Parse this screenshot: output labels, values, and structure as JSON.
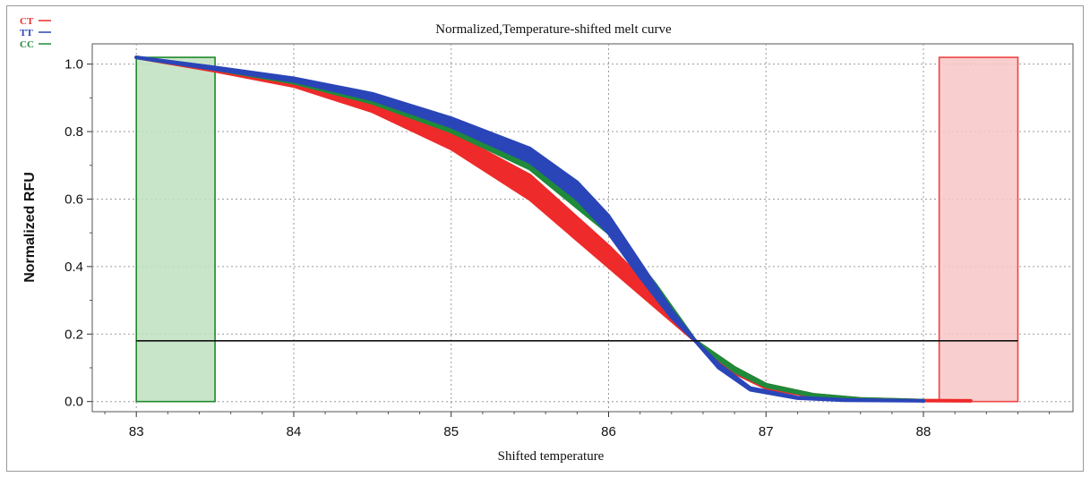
{
  "chart_data": {
    "type": "line",
    "title": "Normalized,Temperature-shifted melt curve",
    "xlabel": "Shifted temperature",
    "ylabel": "Normalized RFU",
    "xlim": [
      82.72,
      88.95
    ],
    "ylim": [
      -0.03,
      1.06
    ],
    "xticks": [
      83,
      84,
      85,
      86,
      87,
      88
    ],
    "yticks": [
      0.0,
      0.2,
      0.4,
      0.6,
      0.8,
      1.0
    ],
    "xtick_labels": [
      "83",
      "84",
      "85",
      "86",
      "87",
      "88"
    ],
    "ytick_labels": [
      "0.0",
      "0.2",
      "0.4",
      "0.6",
      "0.8",
      "1.0"
    ],
    "grid": true,
    "legend_position": "top-left",
    "threshold": 0.18,
    "pre_melt_region": {
      "x": [
        83.0,
        83.5
      ],
      "y_top": 1.02,
      "fill": "#bfe0bf",
      "stroke": "#1e8a2a"
    },
    "post_melt_region": {
      "x": [
        88.1,
        88.6
      ],
      "y_top": 1.02,
      "fill": "#f7c6c6",
      "stroke": "#ee4444"
    },
    "series": [
      {
        "name": "CT",
        "color": "#ee2a2a",
        "x": [
          83.0,
          83.5,
          84.0,
          84.5,
          85.0,
          85.5,
          86.0,
          86.3,
          86.55,
          86.8,
          87.0,
          87.3,
          87.6,
          88.0,
          88.3
        ],
        "y_min": [
          1.02,
          0.98,
          0.935,
          0.86,
          0.75,
          0.6,
          0.4,
          0.28,
          0.18,
          0.085,
          0.04,
          0.015,
          0.006,
          0.003,
          0.002
        ],
        "y_max": [
          1.02,
          0.985,
          0.945,
          0.885,
          0.795,
          0.67,
          0.46,
          0.32,
          0.18,
          0.1,
          0.05,
          0.02,
          0.008,
          0.003,
          0.002
        ]
      },
      {
        "name": "TT",
        "color": "#2a45b8",
        "x": [
          83.0,
          83.5,
          84.0,
          84.5,
          85.0,
          85.5,
          85.8,
          86.0,
          86.2,
          86.4,
          86.55,
          86.7,
          86.9,
          87.2,
          87.5,
          88.0
        ],
        "y_min": [
          1.02,
          0.985,
          0.95,
          0.895,
          0.815,
          0.71,
          0.6,
          0.5,
          0.37,
          0.25,
          0.18,
          0.1,
          0.035,
          0.01,
          0.004,
          0.002
        ],
        "y_max": [
          1.02,
          0.99,
          0.958,
          0.912,
          0.84,
          0.75,
          0.65,
          0.55,
          0.41,
          0.27,
          0.18,
          0.11,
          0.04,
          0.012,
          0.005,
          0.002
        ]
      },
      {
        "name": "CC",
        "color": "#1f8a3a",
        "x": [
          83.0,
          83.5,
          84.0,
          84.5,
          85.0,
          85.5,
          86.0,
          86.3,
          86.55,
          86.8,
          87.0,
          87.3,
          87.6,
          88.0
        ],
        "y_min": [
          1.02,
          0.985,
          0.945,
          0.885,
          0.8,
          0.69,
          0.5,
          0.33,
          0.18,
          0.09,
          0.045,
          0.017,
          0.007,
          0.003
        ],
        "y_max": [
          1.02,
          0.988,
          0.952,
          0.9,
          0.82,
          0.715,
          0.52,
          0.345,
          0.18,
          0.1,
          0.05,
          0.02,
          0.008,
          0.003
        ]
      }
    ]
  }
}
